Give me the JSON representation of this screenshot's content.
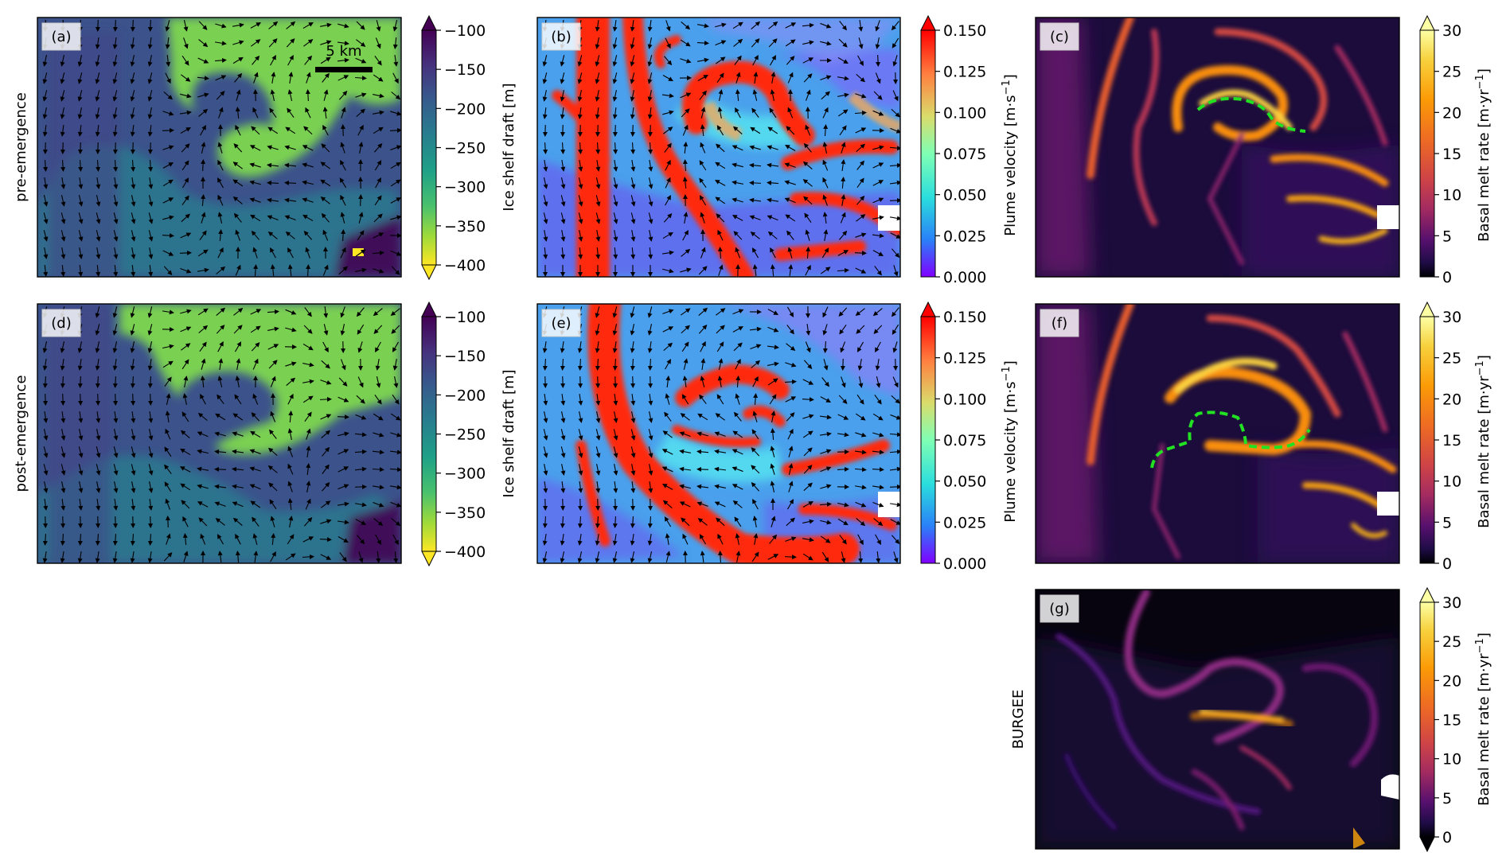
{
  "figure": {
    "row_labels": [
      "pre-emergence",
      "post-emergence",
      "BURGEE"
    ],
    "scale_bar_label": "5 km"
  },
  "colorbars": {
    "draft": {
      "label": "Ice shelf draft [m]",
      "colormap": "viridis-reversed",
      "range": [
        -400,
        -100
      ],
      "ticks": [
        "−100",
        "−150",
        "−200",
        "−250",
        "−300",
        "−350",
        "−400"
      ],
      "extend": "both"
    },
    "velocity": {
      "label": "Plume velocity [m·s",
      "label_sup": "−1",
      "label_end": "]",
      "colormap": "rainbow",
      "range": [
        0,
        0.15
      ],
      "ticks": [
        "0.150",
        "0.125",
        "0.100",
        "0.075",
        "0.050",
        "0.025",
        "0.000"
      ],
      "extend": "max"
    },
    "melt": {
      "label": "Basal melt rate [m·yr",
      "label_sup": "−1",
      "label_end": "]",
      "colormap": "inferno",
      "range": [
        0,
        30
      ],
      "ticks": [
        "30",
        "25",
        "20",
        "15",
        "10",
        "5",
        "0"
      ],
      "extend": "max"
    },
    "melt_g": {
      "label": "Basal melt rate [m·yr",
      "label_sup": "−1",
      "label_end": "]",
      "colormap": "inferno",
      "range": [
        0,
        30
      ],
      "ticks": [
        "30",
        "25",
        "20",
        "15",
        "10",
        "5",
        "0"
      ],
      "extend": "both"
    }
  },
  "chart_data": [
    {
      "type": "heatmap",
      "panel": "(a)",
      "variable": "Ice shelf draft",
      "unit": "m",
      "row": "pre-emergence",
      "quiver": true,
      "scale_bar": "5 km",
      "value_range": [
        -400,
        -100
      ]
    },
    {
      "type": "heatmap",
      "panel": "(b)",
      "variable": "Plume velocity",
      "unit": "m·s⁻¹",
      "row": "pre-emergence",
      "quiver": true,
      "value_range": [
        0,
        0.15
      ]
    },
    {
      "type": "heatmap",
      "panel": "(c)",
      "variable": "Basal melt rate",
      "unit": "m·yr⁻¹",
      "row": "pre-emergence",
      "overlay": "green dashed line",
      "value_range": [
        0,
        30
      ]
    },
    {
      "type": "heatmap",
      "panel": "(d)",
      "variable": "Ice shelf draft",
      "unit": "m",
      "row": "post-emergence",
      "quiver": true,
      "value_range": [
        -400,
        -100
      ]
    },
    {
      "type": "heatmap",
      "panel": "(e)",
      "variable": "Plume velocity",
      "unit": "m·s⁻¹",
      "row": "post-emergence",
      "quiver": true,
      "value_range": [
        0,
        0.15
      ]
    },
    {
      "type": "heatmap",
      "panel": "(f)",
      "variable": "Basal melt rate",
      "unit": "m·yr⁻¹",
      "row": "post-emergence",
      "overlay": "green dashed line",
      "value_range": [
        0,
        30
      ]
    },
    {
      "type": "heatmap",
      "panel": "(g)",
      "variable": "Basal melt rate",
      "unit": "m·yr⁻¹",
      "row": "BURGEE",
      "value_range": [
        0,
        30
      ]
    }
  ]
}
